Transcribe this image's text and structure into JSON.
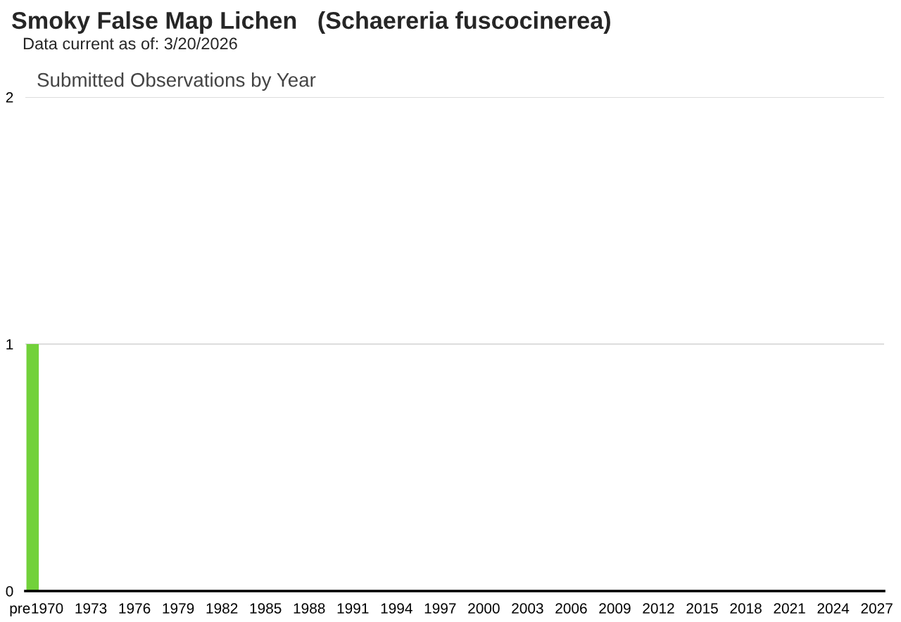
{
  "chart_data": {
    "type": "bar",
    "title": "Smoky False Map Lichen   (Schaereria fuscocinerea)",
    "subtitle": "Submitted Observations by Year",
    "annotations": [
      "Data current as of: 3/20/2026"
    ],
    "categories": [
      "pre",
      "1970",
      null,
      null,
      "1973",
      null,
      null,
      "1976",
      null,
      null,
      "1979",
      null,
      null,
      "1982",
      null,
      null,
      "1985",
      null,
      null,
      "1988",
      null,
      null,
      "1991",
      null,
      null,
      "1994",
      null,
      null,
      "1997",
      null,
      null,
      "2000",
      null,
      null,
      "2003",
      null,
      null,
      "2006",
      null,
      null,
      "2009",
      null,
      null,
      "2012",
      null,
      null,
      "2015",
      null,
      null,
      "2018",
      null,
      null,
      "2021",
      null,
      null,
      "2024",
      null,
      null,
      "2027"
    ],
    "values": [
      1,
      0,
      0,
      0,
      0,
      0,
      0,
      0,
      0,
      0,
      0,
      0,
      0,
      0,
      0,
      0,
      0,
      0,
      0,
      0,
      0,
      0,
      0,
      0,
      0,
      0,
      0,
      0,
      0,
      0,
      0,
      0,
      0,
      0,
      0,
      0,
      0,
      0,
      0,
      0,
      0,
      0,
      0,
      0,
      0,
      0,
      0,
      0,
      0,
      0,
      0,
      0,
      0,
      0,
      0,
      0,
      0,
      0,
      0
    ],
    "color": "#72d13a",
    "ylim": [
      0,
      2
    ],
    "yticks": [
      0,
      1,
      2
    ],
    "grid": "y"
  }
}
